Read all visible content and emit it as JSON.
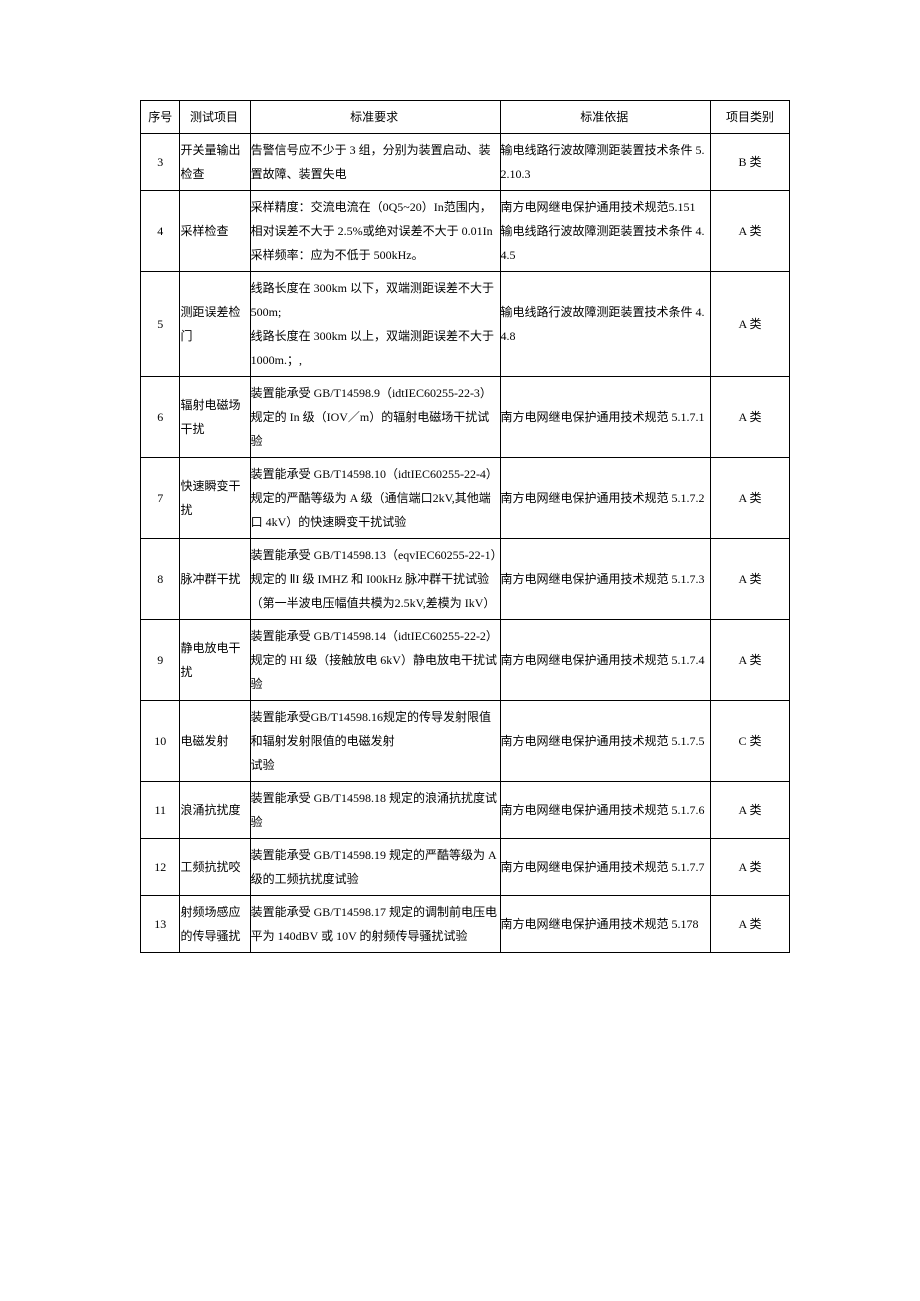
{
  "headers": {
    "seq": "序号",
    "item": "测试项目",
    "req": "标准要求",
    "basis": "标准依据",
    "cat": "项目类别"
  },
  "rows": [
    {
      "seq": "3",
      "item": "开关量输出检查",
      "req": "告警信号应不少于 3 组，分别为装置启动、装置故障、装置失电",
      "basis": "输电线路行波故障测距装置技术条件 5.2.10.3",
      "cat": "B 类"
    },
    {
      "seq": "4",
      "item": "采样检查",
      "req": "采样精度：交流电流在（0Q5~20）In范围内，相对误差不大于 2.5%或绝对误差不大于 0.01In\n采样频率：应为不低于 500kHz。",
      "basis": "南方电网继电保护通用技术规范5.151\n输电线路行波故障测距装置技术条件 4.4.5",
      "cat": "A 类"
    },
    {
      "seq": "5",
      "item": "测距误差检门",
      "req": "线路长度在 300km 以下，双端测距误差不大于 500m;\n线路长度在 300km 以上，双端测距误差不大于 1000m.；,",
      "basis": "输电线路行波故障测距装置技术条件 4.4.8",
      "cat": "A 类"
    },
    {
      "seq": "6",
      "item": "辐射电磁场干扰",
      "req": "装置能承受 GB/T14598.9（idtIEC60255-22-3）规定的 In 级（IOV／m）的辐射电磁场干扰试验",
      "basis": "南方电网继电保护通用技术规范 5.1.7.1",
      "cat": "A 类"
    },
    {
      "seq": "7",
      "item": "快速瞬变干扰",
      "req": "装置能承受 GB/T14598.10（idtIEC60255-22-4）规定的严酷等级为 A 级（通信端口2kV,其他端口 4kV）的快速瞬变干扰试验",
      "basis": "南方电网继电保护通用技术规范 5.1.7.2",
      "cat": "A 类"
    },
    {
      "seq": "8",
      "item": "脉冲群干扰",
      "req": "装置能承受 GB/T14598.13（eqvIEC60255-22-1）规定的 ⅡI 级 IMHZ 和 I00kHz 脉冲群干扰试验（第一半波电压幅值共模为2.5kV,差模为 IkV）",
      "basis": "南方电网继电保护通用技术规范 5.1.7.3",
      "cat": "A 类"
    },
    {
      "seq": "9",
      "item": "静电放电干扰",
      "req": "装置能承受 GB/T14598.14（idtIEC60255-22-2）规定的 HI 级（接触放电 6kV）静电放电干扰试验",
      "basis": "南方电网继电保护通用技术规范 5.1.7.4",
      "cat": "A 类"
    },
    {
      "seq": "10",
      "item": "电磁发射",
      "req": "装置能承受GB/T14598.16规定的传导发射限值和辐射发射限值的电磁发射\n试验",
      "basis": "南方电网继电保护通用技术规范 5.1.7.5",
      "cat": "C 类"
    },
    {
      "seq": "11",
      "item": "浪涌抗扰度",
      "req": "装置能承受 GB/T14598.18 规定的浪涌抗扰度试验",
      "basis": "南方电网继电保护通用技术规范 5.1.7.6",
      "cat": "A 类"
    },
    {
      "seq": "12",
      "item": "工频抗扰咬",
      "req": "装置能承受 GB/T14598.19 规定的严酷等级为 A 级的工频抗扰度试验",
      "basis": "南方电网继电保护通用技术规范 5.1.7.7",
      "cat": "A 类"
    },
    {
      "seq": "13",
      "item": "射频场感应的传导骚扰",
      "req": "装置能承受 GB/T14598.17 规定的调制前电压电平为 140dBV 或 10V 的射频传导骚扰试验",
      "basis": "南方电网继电保护通用技术规范 5.178",
      "cat": "A 类"
    }
  ]
}
